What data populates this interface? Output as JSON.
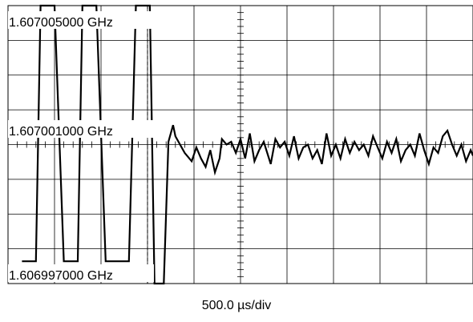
{
  "chart_data": {
    "type": "line",
    "title": "",
    "xlabel": "500.0 µs/div",
    "ylabel": "",
    "grid": true,
    "x_divisions": 10,
    "y_divisions": 8,
    "x_range_div": [
      0,
      10
    ],
    "ylim_hz": [
      1606996000,
      1607006000
    ],
    "y_tick_labels": [
      {
        "text": "1.607005000 GHz",
        "value_hz": 1607005000
      },
      {
        "text": "1.607001000 GHz",
        "value_hz": 1607001000
      },
      {
        "text": "1.606997000 GHz",
        "value_hz": 1606997000
      }
    ],
    "trigger_marker_div": 3.0,
    "series": [
      {
        "x_div": [
          0.3,
          0.6,
          0.7,
          1.0,
          1.2,
          1.5,
          1.6,
          1.9,
          2.1,
          2.6,
          2.75,
          3.05,
          3.15,
          3.35,
          3.45,
          3.55,
          3.6,
          3.8,
          3.95,
          4.05,
          4.15,
          4.25,
          4.35,
          4.45,
          4.55,
          4.6,
          4.7,
          4.8,
          4.9,
          5.0,
          5.1,
          5.2,
          5.3,
          5.4,
          5.5,
          5.65,
          5.75,
          5.85,
          5.95,
          6.05,
          6.15,
          6.25,
          6.35,
          6.45,
          6.55,
          6.65,
          6.75,
          6.85,
          6.95,
          7.05,
          7.15,
          7.25,
          7.35,
          7.45,
          7.55,
          7.65,
          7.75,
          7.85,
          7.95,
          8.05,
          8.15,
          8.25,
          8.35,
          8.45,
          8.55,
          8.65,
          8.75,
          8.85,
          8.95,
          9.05,
          9.15,
          9.25,
          9.35,
          9.45,
          9.55,
          9.65,
          9.75,
          9.85,
          9.95,
          10.0
        ],
        "y_hz": [
          1606996800,
          1606996800,
          1607006000,
          1607006000,
          1606996800,
          1606996800,
          1607006000,
          1607006000,
          1606996800,
          1606996800,
          1607006000,
          1607006000,
          1606996000,
          1606996000,
          1607001100,
          1607001700,
          1607001300,
          1607000700,
          1607000400,
          1607000900,
          1607000500,
          1607000200,
          1607000800,
          1607000000,
          1607000500,
          1607001200,
          1607001000,
          1607001100,
          1607000700,
          1607001200,
          1607000500,
          1607001400,
          1607000400,
          1607000800,
          1607001100,
          1607000300,
          1607001200,
          1607000900,
          1607001100,
          1607000600,
          1607001300,
          1607000500,
          1607000900,
          1607001000,
          1607000500,
          1607000800,
          1607000300,
          1607001400,
          1607000600,
          1607001000,
          1607000500,
          1607001200,
          1607000700,
          1607001100,
          1607000800,
          1607001000,
          1607000600,
          1607001300,
          1607000900,
          1607000500,
          1607001100,
          1607000700,
          1607001200,
          1607000400,
          1607000800,
          1607001000,
          1607000600,
          1607001400,
          1607000800,
          1607000300,
          1607000900,
          1607000700,
          1607001300,
          1607001500,
          1607001000,
          1607000600,
          1607001000,
          1607000400,
          1607000800,
          1607000600
        ]
      }
    ]
  }
}
